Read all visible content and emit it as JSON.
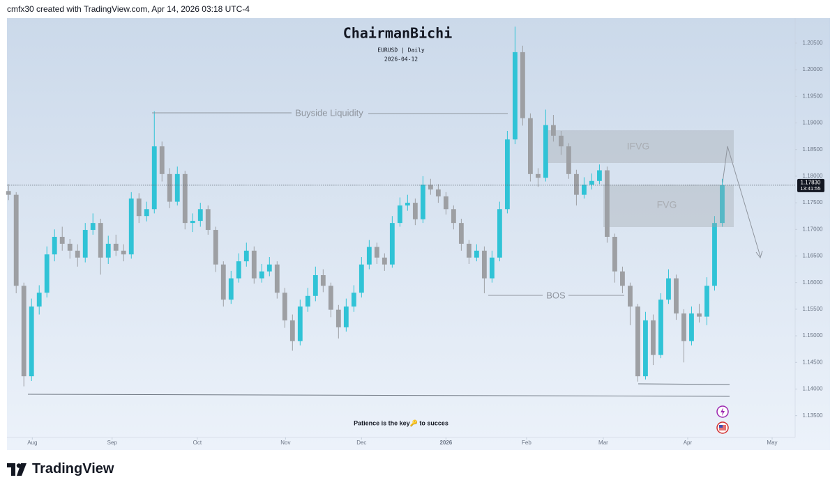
{
  "header": "cmfx30 created with TradingView.com, Apr 14, 2026 03:18 UTC-4",
  "brand": "TradingView",
  "chart_data": {
    "type": "candlestick",
    "title": "ChairmanBichi",
    "subtitle": "EURUSD | Daily",
    "date": "2026-04-12",
    "annotations": {
      "buyside": "Buyside Liquidity",
      "ifvg": "IFVG",
      "fvg": "FVG",
      "bos": "BOS",
      "note": "Patience is the key🔑 to succes"
    },
    "up_color": "#30c3d6",
    "down_color": "#9d9fa3",
    "open": [
      1.1772,
      1.1765,
      1.1594,
      1.1424,
      1.1555,
      1.1581,
      1.1653,
      1.1686,
      1.1673,
      1.166,
      1.1647,
      1.1699,
      1.1712,
      1.1647,
      1.1673,
      1.166,
      1.1653,
      1.1758,
      1.1725,
      1.1738,
      1.1856,
      1.1804,
      1.1752,
      1.1804,
      1.1712,
      1.1716,
      1.1738,
      1.1699,
      1.1634,
      1.1568,
      1.1608,
      1.164,
      1.166,
      1.1608,
      1.1621,
      1.1634,
      1.1581,
      1.1529,
      1.149,
      1.1555,
      1.1575,
      1.1614,
      1.1594,
      1.1549,
      1.1516,
      1.1555,
      1.1581,
      1.1634,
      1.1667,
      1.1647,
      1.1634,
      1.1712,
      1.1745,
      1.175,
      1.1719,
      1.1784,
      1.1775,
      1.1762,
      1.1738,
      1.1712,
      1.1673,
      1.1647,
      1.166,
      1.1608,
      1.1647,
      1.1738,
      1.1869,
      1.2033,
      1.1909,
      1.1804,
      1.1797,
      1.1896,
      1.1876,
      1.1856,
      1.1804,
      1.1765,
      1.1784,
      1.1791,
      1.1811,
      1.1686,
      1.1621,
      1.1594,
      1.1555,
      1.1424,
      1.1529,
      1.1464,
      1.1568,
      1.1608,
      1.1542,
      1.149,
      1.1542,
      1.1536,
      1.1594,
      1.1712
    ],
    "high": [
      1.1785,
      1.177,
      1.16,
      1.157,
      1.1595,
      1.1668,
      1.17,
      1.1705,
      1.1682,
      1.1672,
      1.1712,
      1.173,
      1.172,
      1.1688,
      1.169,
      1.1672,
      1.177,
      1.1768,
      1.1752,
      1.1922,
      1.1865,
      1.1815,
      1.1818,
      1.181,
      1.173,
      1.175,
      1.1745,
      1.1705,
      1.164,
      1.1622,
      1.1655,
      1.1675,
      1.1668,
      1.1635,
      1.1648,
      1.164,
      1.159,
      1.154,
      1.1568,
      1.159,
      1.163,
      1.1625,
      1.16,
      1.1558,
      1.157,
      1.1595,
      1.1648,
      1.168,
      1.1675,
      1.1655,
      1.1725,
      1.176,
      1.1765,
      1.1758,
      1.18,
      1.1795,
      1.1785,
      1.177,
      1.1745,
      1.172,
      1.168,
      1.1672,
      1.1668,
      1.166,
      1.1752,
      1.1885,
      1.2081,
      1.2045,
      1.1918,
      1.1815,
      1.1925,
      1.1915,
      1.1885,
      1.1862,
      1.1812,
      1.1798,
      1.1805,
      1.1822,
      1.1818,
      1.1692,
      1.163,
      1.16,
      1.156,
      1.1545,
      1.154,
      1.158,
      1.1625,
      1.1615,
      1.155,
      1.1555,
      1.156,
      1.161,
      1.1725,
      1.1795
    ],
    "low": [
      1.1755,
      1.158,
      1.1405,
      1.1415,
      1.154,
      1.1572,
      1.164,
      1.166,
      1.1645,
      1.163,
      1.1638,
      1.169,
      1.1615,
      1.1635,
      1.165,
      1.164,
      1.1645,
      1.1712,
      1.1715,
      1.173,
      1.179,
      1.174,
      1.1745,
      1.17,
      1.1695,
      1.1705,
      1.169,
      1.162,
      1.1555,
      1.156,
      1.16,
      1.163,
      1.1598,
      1.16,
      1.1612,
      1.157,
      1.1515,
      1.1472,
      1.1482,
      1.1545,
      1.1565,
      1.1582,
      1.1535,
      1.1495,
      1.1508,
      1.1545,
      1.1572,
      1.1625,
      1.1635,
      1.1622,
      1.1628,
      1.1705,
      1.1735,
      1.1708,
      1.1712,
      1.1765,
      1.175,
      1.1728,
      1.17,
      1.166,
      1.1635,
      1.164,
      1.158,
      1.16,
      1.164,
      1.173,
      1.186,
      1.1895,
      1.179,
      1.178,
      1.179,
      1.1865,
      1.184,
      1.1795,
      1.1745,
      1.1758,
      1.1775,
      1.1785,
      1.1675,
      1.16,
      1.158,
      1.152,
      1.1414,
      1.1418,
      1.1445,
      1.1458,
      1.156,
      1.153,
      1.145,
      1.1482,
      1.1525,
      1.152,
      1.1585,
      1.1705
    ],
    "close": [
      1.1765,
      1.1594,
      1.1424,
      1.1555,
      1.1581,
      1.1653,
      1.1686,
      1.1673,
      1.166,
      1.1647,
      1.1699,
      1.1712,
      1.1647,
      1.1673,
      1.166,
      1.1653,
      1.1758,
      1.1725,
      1.1738,
      1.1856,
      1.1804,
      1.1752,
      1.1804,
      1.1712,
      1.1716,
      1.1738,
      1.1699,
      1.1634,
      1.1568,
      1.1608,
      1.164,
      1.166,
      1.1608,
      1.1621,
      1.1634,
      1.1581,
      1.1529,
      1.149,
      1.1555,
      1.1575,
      1.1614,
      1.1594,
      1.1549,
      1.1516,
      1.1555,
      1.1581,
      1.1634,
      1.1667,
      1.1647,
      1.1634,
      1.1712,
      1.1745,
      1.175,
      1.1719,
      1.1784,
      1.1775,
      1.1762,
      1.1738,
      1.1712,
      1.1673,
      1.1647,
      1.166,
      1.1608,
      1.1647,
      1.1738,
      1.1869,
      1.2033,
      1.1909,
      1.1804,
      1.1797,
      1.1896,
      1.1876,
      1.1856,
      1.1804,
      1.1765,
      1.1784,
      1.1791,
      1.1811,
      1.1686,
      1.1621,
      1.1594,
      1.1555,
      1.1424,
      1.1529,
      1.1464,
      1.1568,
      1.1608,
      1.1542,
      1.149,
      1.1542,
      1.1536,
      1.1594,
      1.1712,
      1.1783
    ],
    "last_price": {
      "value": 1.1783,
      "label": "1.17830"
    },
    "countdown": "13:41:55",
    "xlim": [
      -0.2,
      102.5
    ],
    "xticks": [
      {
        "value": 3.1,
        "label": "Aug"
      },
      {
        "value": 13.5,
        "label": "Sep"
      },
      {
        "value": 24.6,
        "label": "Oct"
      },
      {
        "value": 36.1,
        "label": "Nov"
      },
      {
        "value": 46,
        "label": "Dec"
      },
      {
        "value": 57,
        "label": "2026"
      },
      {
        "value": 67.5,
        "label": "Feb"
      },
      {
        "value": 77.5,
        "label": "Mar"
      },
      {
        "value": 88.5,
        "label": "Apr"
      },
      {
        "value": 99.5,
        "label": "May"
      }
    ],
    "ylim": [
      1.1309,
      1.2097
    ],
    "yticks": [
      {
        "value": 1.205,
        "label": "1.20500"
      },
      {
        "value": 1.2,
        "label": "1.20000"
      },
      {
        "value": 1.195,
        "label": "1.19500"
      },
      {
        "value": 1.19,
        "label": "1.19000"
      },
      {
        "value": 1.185,
        "label": "1.18500"
      },
      {
        "value": 1.18,
        "label": "1.18000"
      },
      {
        "value": 1.175,
        "label": "1.17500"
      },
      {
        "value": 1.17,
        "label": "1.17000"
      },
      {
        "value": 1.165,
        "label": "1.16500"
      },
      {
        "value": 1.16,
        "label": "1.16000"
      },
      {
        "value": 1.155,
        "label": "1.15500"
      },
      {
        "value": 1.15,
        "label": "1.15000"
      },
      {
        "value": 1.145,
        "label": "1.14500"
      },
      {
        "value": 1.14,
        "label": "1.14000"
      },
      {
        "value": 1.135,
        "label": "1.13500"
      }
    ]
  }
}
